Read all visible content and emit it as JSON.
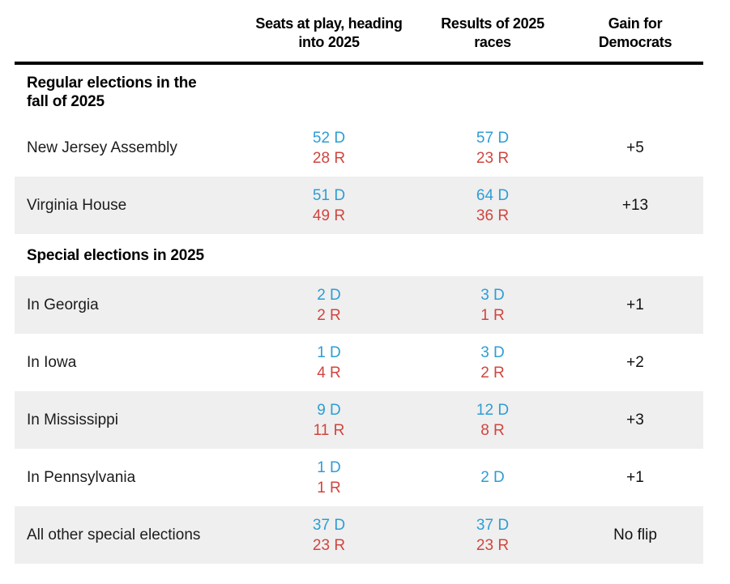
{
  "colors": {
    "dem": "#2e9dd4",
    "rep": "#d0453f",
    "rowAlt": "#efefef",
    "rule": "#000000"
  },
  "table": {
    "columns": {
      "c1": "",
      "c2": "Seats at play, heading\ninto 2025",
      "c3": "Results of 2025\nraces",
      "c4": "Gain for\nDemocrats"
    },
    "rows": [
      {
        "type": "section",
        "label": "Regular elections in the\nfall of 2025"
      },
      {
        "type": "data",
        "label": "New Jersey Assembly",
        "before_d": "52 D",
        "before_r": "28 R",
        "result_d": "57 D",
        "result_r": "23 R",
        "gain": "+5"
      },
      {
        "type": "data",
        "label": "Virginia House",
        "before_d": "51 D",
        "before_r": "49 R",
        "result_d": "64 D",
        "result_r": "36 R",
        "gain": "+13"
      },
      {
        "type": "section",
        "label": "Special elections in 2025"
      },
      {
        "type": "data",
        "label": "In Georgia",
        "before_d": "2 D",
        "before_r": "2 R",
        "result_d": "3 D",
        "result_r": "1 R",
        "gain": "+1"
      },
      {
        "type": "data",
        "label": "In Iowa",
        "before_d": "1 D",
        "before_r": "4 R",
        "result_d": "3 D",
        "result_r": "2 R",
        "gain": "+2"
      },
      {
        "type": "data",
        "label": "In Mississippi",
        "before_d": "9 D",
        "before_r": "11 R",
        "result_d": "12 D",
        "result_r": "8 R",
        "gain": "+3"
      },
      {
        "type": "data",
        "label": "In Pennsylvania",
        "before_d": "1 D",
        "before_r": "1 R",
        "result_d": "2 D",
        "gain": "+1"
      },
      {
        "type": "data",
        "label": "All other special elections",
        "before_d": "37 D",
        "before_r": "23 R",
        "result_d": "37 D",
        "result_r": "23 R",
        "gain": "No flip"
      }
    ]
  },
  "chart_data": {
    "type": "table",
    "title": "",
    "columns": [
      "",
      "Seats at play, heading into 2025",
      "Results of 2025 races",
      "Gain for Democrats"
    ],
    "rows": [
      [
        "Regular elections in the fall of 2025",
        "",
        "",
        ""
      ],
      [
        "New Jersey Assembly",
        "52 D / 28 R",
        "57 D / 23 R",
        "+5"
      ],
      [
        "Virginia House",
        "51 D / 49 R",
        "64 D / 36 R",
        "+13"
      ],
      [
        "Special elections in 2025",
        "",
        "",
        ""
      ],
      [
        "In Georgia",
        "2 D / 2 R",
        "3 D / 1 R",
        "+1"
      ],
      [
        "In Iowa",
        "1 D / 4 R",
        "3 D / 2 R",
        "+2"
      ],
      [
        "In Mississippi",
        "9 D / 11 R",
        "12 D / 8 R",
        "+3"
      ],
      [
        "In Pennsylvania",
        "1 D / 1 R",
        "2 D",
        "+1"
      ],
      [
        "All other special elections",
        "37 D / 23 R",
        "37 D / 23 R",
        "No flip"
      ]
    ],
    "notes": "Democratic counts shown in blue, Republican counts in red; alternating gray row shading; thick black rule under column headers"
  }
}
